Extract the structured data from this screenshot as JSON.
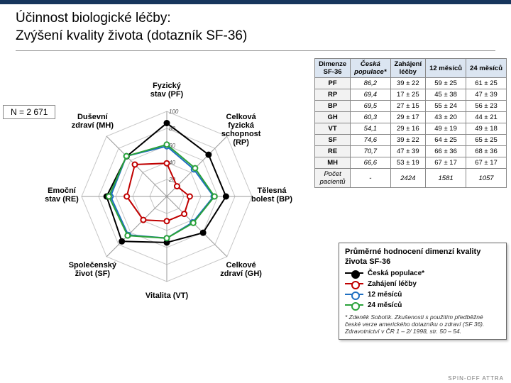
{
  "title_line1": "Účinnost biologické léčby:",
  "title_line2": "Zvýšení kvality života (dotazník SF-36)",
  "n_label": "N = 2 671",
  "radar": {
    "type": "radar",
    "axes": [
      {
        "key": "PF",
        "label": "Fyzický\nstav (PF)",
        "angle": 90
      },
      {
        "key": "RP",
        "label": "Celková\nfyzická\nschopnost\n(RP)",
        "angle": 45
      },
      {
        "key": "BP",
        "label": "Tělesná\nbolest (BP)",
        "angle": 0
      },
      {
        "key": "GH",
        "label": "Celkové\nzdraví (GH)",
        "angle": 315
      },
      {
        "key": "VT",
        "label": "Vitalita (VT)",
        "angle": 270
      },
      {
        "key": "SF",
        "label": "Společenský\nživot (SF)",
        "angle": 225
      },
      {
        "key": "RE",
        "label": "Emoční\nstav (RE)",
        "angle": 180
      },
      {
        "key": "MH",
        "label": "Duševní\nzdraví (MH)",
        "angle": 135
      }
    ],
    "scale_max": 100,
    "scale_ticks": [
      20,
      40,
      60,
      80,
      100
    ],
    "grid_color": "#c7c7c7",
    "axis_color": "#9a9a9a",
    "background": "#ffffff",
    "label_fontsize": 11,
    "series": [
      {
        "name": "Česká populace*",
        "color": "#000000",
        "fill": "#000000",
        "values": {
          "PF": 86.2,
          "RP": 69.4,
          "BP": 69.5,
          "GH": 60.3,
          "VT": 54.1,
          "SF": 74.6,
          "RE": 70.7,
          "MH": 66.6
        }
      },
      {
        "name": "Zahájení léčby",
        "color": "#c00000",
        "fill": "#ffffff",
        "values": {
          "PF": 39,
          "RP": 17,
          "BP": 27,
          "GH": 29,
          "VT": 29,
          "SF": 39,
          "RE": 47,
          "MH": 53
        }
      },
      {
        "name": "12 měsíců",
        "color": "#1f6fc1",
        "fill": "#ffffff",
        "values": {
          "PF": 59,
          "RP": 45,
          "BP": 55,
          "GH": 43,
          "VT": 49,
          "SF": 64,
          "RE": 66,
          "MH": 67
        }
      },
      {
        "name": "24 měsíců",
        "color": "#2aa23a",
        "fill": "#ffffff",
        "values": {
          "PF": 61,
          "RP": 47,
          "BP": 56,
          "GH": 44,
          "VT": 49,
          "SF": 65,
          "RE": 68,
          "MH": 67
        }
      }
    ]
  },
  "table": {
    "headers": [
      "Dimenze\nSF-36",
      "Česká\npopulace*",
      "Zahájení\nléčby",
      "12 měsíců",
      "24 měsíců"
    ],
    "rows": [
      [
        "PF",
        "86,2",
        "39 ± 22",
        "59 ± 25",
        "61 ± 25"
      ],
      [
        "RP",
        "69,4",
        "17 ± 25",
        "45 ± 38",
        "47 ± 39"
      ],
      [
        "BP",
        "69,5",
        "27 ± 15",
        "55 ± 24",
        "56 ± 23"
      ],
      [
        "GH",
        "60,3",
        "29 ± 17",
        "43 ± 20",
        "44 ± 21"
      ],
      [
        "VT",
        "54,1",
        "29 ± 16",
        "49 ± 19",
        "49 ± 18"
      ],
      [
        "SF",
        "74,6",
        "39 ± 22",
        "64 ± 25",
        "65 ± 25"
      ],
      [
        "RE",
        "70,7",
        "47 ± 39",
        "66 ± 36",
        "68 ± 36"
      ],
      [
        "MH",
        "66,6",
        "53 ± 19",
        "67 ± 17",
        "67 ± 17"
      ]
    ],
    "footer_label": "Počet\npacientů",
    "footer_values": [
      "-",
      "2424",
      "1581",
      "1057"
    ]
  },
  "legend": {
    "title": "Průměrné hodnocení dimenzí kvality života SF-36",
    "items": [
      {
        "label": "Česká populace*",
        "color": "#000000",
        "fill": "#000000"
      },
      {
        "label": "Zahájení léčby",
        "color": "#c00000",
        "fill": "#ffffff"
      },
      {
        "label": "12 měsíců",
        "color": "#1f6fc1",
        "fill": "#ffffff"
      },
      {
        "label": "24 měsíců",
        "color": "#2aa23a",
        "fill": "#ffffff"
      }
    ],
    "note": "* Zdeněk Sobotík. Zkušenosti s použitím předběžné české verze amerického dotazníku o zdraví (SF 36). Zdravotnictví v ČR 1 – 2/ 1998, str. 50 – 54."
  },
  "footer_brand": "SPIN-OFF   ATTRA"
}
